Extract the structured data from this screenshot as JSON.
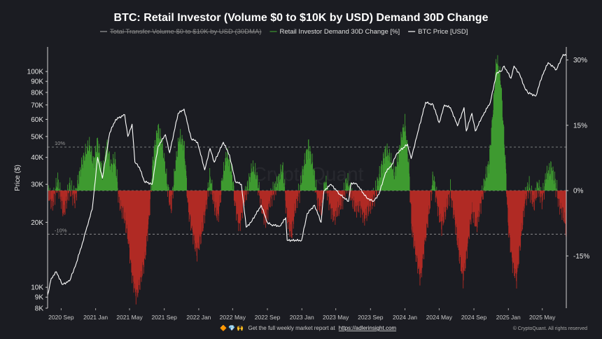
{
  "chart_data": {
    "type": "line",
    "title": "BTC: Retail Investor (Volume $0 to $10K by USD) Demand 30D Change",
    "legend": [
      {
        "label": "Total Transfer Volume $0 to $10K by USD (30DMA)",
        "color": "#9a9a9a",
        "disabled": true
      },
      {
        "label": "Retail Investor Demand 30D Change [%]",
        "color": "#3e9a30"
      },
      {
        "label": "BTC Price [USD]",
        "color": "#ffffff"
      }
    ],
    "legend_position": "top-center",
    "left_axis": {
      "label": "Price ($)",
      "scale": "log",
      "range": [
        8000,
        130000
      ],
      "ticks": [
        {
          "value": 8000,
          "label": "8K"
        },
        {
          "value": 9000,
          "label": "9K"
        },
        {
          "value": 10000,
          "label": "10K"
        },
        {
          "value": 20000,
          "label": "20K"
        },
        {
          "value": 30000,
          "label": "30K"
        },
        {
          "value": 40000,
          "label": "40K"
        },
        {
          "value": 50000,
          "label": "50K"
        },
        {
          "value": 60000,
          "label": "60K"
        },
        {
          "value": 70000,
          "label": "70K"
        },
        {
          "value": 80000,
          "label": "80K"
        },
        {
          "value": 90000,
          "label": "90K"
        },
        {
          "value": 100000,
          "label": "100K"
        }
      ]
    },
    "right_axis": {
      "scale": "linear",
      "range": [
        -27,
        33
      ],
      "ticks": [
        {
          "value": 30,
          "label": "30%"
        },
        {
          "value": 15,
          "label": "15%"
        },
        {
          "value": 0,
          "label": "0%"
        },
        {
          "value": -15,
          "label": "-15%"
        }
      ]
    },
    "x_axis": {
      "range": [
        "2020-07-15",
        "2025-07-25"
      ],
      "ticks": [
        {
          "date": "2020-09-01",
          "label": "2020 Sep"
        },
        {
          "date": "2021-01-01",
          "label": "2021 Jan"
        },
        {
          "date": "2021-05-01",
          "label": "2021 May"
        },
        {
          "date": "2021-09-01",
          "label": "2021 Sep"
        },
        {
          "date": "2022-01-01",
          "label": "2022 Jan"
        },
        {
          "date": "2022-05-01",
          "label": "2022 May"
        },
        {
          "date": "2022-09-01",
          "label": "2022 Sep"
        },
        {
          "date": "2023-01-01",
          "label": "2023 Jan"
        },
        {
          "date": "2023-05-01",
          "label": "2023 May"
        },
        {
          "date": "2023-09-01",
          "label": "2023 Sep"
        },
        {
          "date": "2024-01-01",
          "label": "2024 Jan"
        },
        {
          "date": "2024-05-01",
          "label": "2024 May"
        },
        {
          "date": "2024-09-01",
          "label": "2024 Sep"
        },
        {
          "date": "2025-01-01",
          "label": "2025 Jan"
        },
        {
          "date": "2025-05-01",
          "label": "2025 May"
        }
      ]
    },
    "reference_lines": [
      {
        "value": 10,
        "label": "10%"
      },
      {
        "value": 0,
        "label": ""
      },
      {
        "value": -10,
        "label": "-10%"
      }
    ],
    "series": [
      {
        "name": "BTC Price [USD]",
        "axis": "left",
        "color": "#ffffff",
        "points": [
          [
            "2020-07-15",
            9200
          ],
          [
            "2020-07-28",
            11000
          ],
          [
            "2020-08-15",
            11800
          ],
          [
            "2020-09-05",
            10300
          ],
          [
            "2020-10-01",
            10700
          ],
          [
            "2020-10-25",
            13000
          ],
          [
            "2020-11-15",
            16000
          ],
          [
            "2020-12-01",
            19000
          ],
          [
            "2020-12-20",
            23000
          ],
          [
            "2021-01-08",
            40000
          ],
          [
            "2021-01-25",
            32000
          ],
          [
            "2021-02-20",
            52000
          ],
          [
            "2021-03-13",
            60000
          ],
          [
            "2021-04-14",
            63000
          ],
          [
            "2021-04-25",
            50000
          ],
          [
            "2021-05-10",
            57000
          ],
          [
            "2021-05-20",
            38000
          ],
          [
            "2021-06-05",
            36000
          ],
          [
            "2021-06-22",
            31000
          ],
          [
            "2021-07-20",
            30000
          ],
          [
            "2021-08-10",
            45000
          ],
          [
            "2021-09-05",
            51000
          ],
          [
            "2021-09-20",
            42000
          ],
          [
            "2021-10-20",
            64000
          ],
          [
            "2021-11-10",
            67000
          ],
          [
            "2021-12-05",
            49000
          ],
          [
            "2021-12-28",
            47000
          ],
          [
            "2022-01-22",
            35000
          ],
          [
            "2022-02-10",
            44000
          ],
          [
            "2022-02-25",
            38000
          ],
          [
            "2022-03-29",
            47000
          ],
          [
            "2022-04-20",
            41000
          ],
          [
            "2022-05-10",
            31000
          ],
          [
            "2022-06-01",
            30000
          ],
          [
            "2022-06-18",
            19000
          ],
          [
            "2022-07-05",
            20000
          ],
          [
            "2022-08-10",
            24000
          ],
          [
            "2022-09-01",
            20000
          ],
          [
            "2022-09-15",
            19500
          ],
          [
            "2022-10-15",
            19200
          ],
          [
            "2022-11-05",
            21000
          ],
          [
            "2022-11-10",
            16500
          ],
          [
            "2022-12-31",
            16500
          ],
          [
            "2023-01-20",
            22000
          ],
          [
            "2023-02-15",
            24000
          ],
          [
            "2023-03-10",
            20000
          ],
          [
            "2023-03-20",
            28000
          ],
          [
            "2023-04-14",
            30000
          ],
          [
            "2023-05-15",
            27000
          ],
          [
            "2023-06-15",
            25000
          ],
          [
            "2023-06-25",
            30500
          ],
          [
            "2023-07-15",
            30000
          ],
          [
            "2023-08-18",
            26000
          ],
          [
            "2023-09-11",
            25000
          ],
          [
            "2023-10-01",
            27000
          ],
          [
            "2023-10-24",
            34000
          ],
          [
            "2023-11-15",
            37000
          ],
          [
            "2023-12-05",
            42000
          ],
          [
            "2024-01-10",
            46000
          ],
          [
            "2024-01-23",
            39500
          ],
          [
            "2024-02-15",
            52000
          ],
          [
            "2024-03-14",
            72000
          ],
          [
            "2024-04-10",
            70000
          ],
          [
            "2024-05-01",
            58000
          ],
          [
            "2024-05-20",
            70000
          ],
          [
            "2024-06-10",
            68000
          ],
          [
            "2024-07-05",
            56000
          ],
          [
            "2024-07-28",
            68000
          ],
          [
            "2024-08-05",
            53000
          ],
          [
            "2024-08-25",
            64000
          ],
          [
            "2024-09-06",
            53000
          ],
          [
            "2024-10-01",
            62000
          ],
          [
            "2024-10-29",
            72000
          ],
          [
            "2024-11-12",
            88000
          ],
          [
            "2024-11-22",
            99000
          ],
          [
            "2024-12-05",
            100000
          ],
          [
            "2024-12-17",
            106000
          ],
          [
            "2025-01-10",
            93000
          ],
          [
            "2025-01-21",
            106000
          ],
          [
            "2025-02-10",
            97000
          ],
          [
            "2025-02-28",
            84000
          ],
          [
            "2025-03-10",
            80000
          ],
          [
            "2025-04-08",
            77000
          ],
          [
            "2025-05-01",
            96000
          ],
          [
            "2025-05-22",
            110000
          ],
          [
            "2025-06-20",
            102000
          ],
          [
            "2025-07-14",
            120000
          ],
          [
            "2025-07-25",
            118000
          ]
        ]
      },
      {
        "name": "Retail Investor Demand 30D Change [%]",
        "axis": "right",
        "color_positive": "#3e9a30",
        "color_negative": "#b02a24",
        "points": [
          [
            "2020-07-15",
            0
          ],
          [
            "2020-08-01",
            -3
          ],
          [
            "2020-08-20",
            2
          ],
          [
            "2020-09-10",
            -5
          ],
          [
            "2020-10-01",
            1
          ],
          [
            "2020-10-20",
            -2
          ],
          [
            "2020-11-10",
            5
          ],
          [
            "2020-11-25",
            8
          ],
          [
            "2020-12-10",
            10
          ],
          [
            "2020-12-25",
            6
          ],
          [
            "2021-01-08",
            11
          ],
          [
            "2021-01-25",
            3
          ],
          [
            "2021-02-10",
            10
          ],
          [
            "2021-02-25",
            5
          ],
          [
            "2021-03-10",
            7
          ],
          [
            "2021-03-25",
            -2
          ],
          [
            "2021-04-10",
            -5
          ],
          [
            "2021-04-25",
            -10
          ],
          [
            "2021-05-10",
            -19
          ],
          [
            "2021-05-25",
            -24
          ],
          [
            "2021-06-10",
            -20
          ],
          [
            "2021-06-25",
            -15
          ],
          [
            "2021-07-10",
            -5
          ],
          [
            "2021-07-25",
            8
          ],
          [
            "2021-08-10",
            14
          ],
          [
            "2021-08-25",
            10
          ],
          [
            "2021-09-10",
            2
          ],
          [
            "2021-09-25",
            -4
          ],
          [
            "2021-10-10",
            5
          ],
          [
            "2021-10-25",
            12
          ],
          [
            "2021-11-10",
            10
          ],
          [
            "2021-11-25",
            -4
          ],
          [
            "2021-12-10",
            -9
          ],
          [
            "2021-12-25",
            -14
          ],
          [
            "2022-01-10",
            -10
          ],
          [
            "2022-01-25",
            -4
          ],
          [
            "2022-02-10",
            3
          ],
          [
            "2022-02-25",
            -3
          ],
          [
            "2022-03-10",
            -6
          ],
          [
            "2022-03-25",
            2
          ],
          [
            "2022-04-10",
            8
          ],
          [
            "2022-04-25",
            5
          ],
          [
            "2022-05-10",
            -3
          ],
          [
            "2022-05-25",
            -8
          ],
          [
            "2022-06-10",
            -2
          ],
          [
            "2022-06-25",
            1
          ],
          [
            "2022-07-10",
            5
          ],
          [
            "2022-07-25",
            3
          ],
          [
            "2022-08-10",
            -3
          ],
          [
            "2022-08-25",
            -7
          ],
          [
            "2022-09-10",
            -2
          ],
          [
            "2022-09-25",
            0
          ],
          [
            "2022-10-10",
            2
          ],
          [
            "2022-10-25",
            5
          ],
          [
            "2022-11-10",
            -6
          ],
          [
            "2022-11-25",
            -10
          ],
          [
            "2022-12-10",
            -3
          ],
          [
            "2022-12-25",
            0
          ],
          [
            "2023-01-10",
            6
          ],
          [
            "2023-01-25",
            10
          ],
          [
            "2023-02-10",
            5
          ],
          [
            "2023-02-25",
            -2
          ],
          [
            "2023-03-10",
            -4
          ],
          [
            "2023-03-25",
            2
          ],
          [
            "2023-04-10",
            -3
          ],
          [
            "2023-04-25",
            -6
          ],
          [
            "2023-05-10",
            -4
          ],
          [
            "2023-05-25",
            -2
          ],
          [
            "2023-06-10",
            2
          ],
          [
            "2023-06-25",
            -1
          ],
          [
            "2023-07-10",
            -4
          ],
          [
            "2023-07-25",
            -3
          ],
          [
            "2023-08-10",
            -6
          ],
          [
            "2023-08-25",
            -4
          ],
          [
            "2023-09-10",
            -2
          ],
          [
            "2023-09-25",
            1
          ],
          [
            "2023-10-10",
            5
          ],
          [
            "2023-10-25",
            9
          ],
          [
            "2023-11-10",
            7
          ],
          [
            "2023-11-25",
            3
          ],
          [
            "2023-12-10",
            8
          ],
          [
            "2023-12-20",
            12
          ],
          [
            "2024-01-01",
            15
          ],
          [
            "2024-01-15",
            5
          ],
          [
            "2024-01-25",
            -8
          ],
          [
            "2024-02-10",
            -15
          ],
          [
            "2024-02-25",
            -20
          ],
          [
            "2024-03-10",
            -12
          ],
          [
            "2024-03-25",
            -5
          ],
          [
            "2024-04-10",
            3
          ],
          [
            "2024-04-25",
            -3
          ],
          [
            "2024-05-10",
            -8
          ],
          [
            "2024-05-25",
            -4
          ],
          [
            "2024-06-10",
            0
          ],
          [
            "2024-06-25",
            -6
          ],
          [
            "2024-07-10",
            -14
          ],
          [
            "2024-07-25",
            -20
          ],
          [
            "2024-08-10",
            -12
          ],
          [
            "2024-08-25",
            -4
          ],
          [
            "2024-09-10",
            -8
          ],
          [
            "2024-09-25",
            -3
          ],
          [
            "2024-10-10",
            2
          ],
          [
            "2024-10-25",
            6
          ],
          [
            "2024-11-10",
            20
          ],
          [
            "2024-11-20",
            30
          ],
          [
            "2024-12-05",
            25
          ],
          [
            "2024-12-20",
            8
          ],
          [
            "2025-01-01",
            -8
          ],
          [
            "2025-01-15",
            -16
          ],
          [
            "2025-01-30",
            -20
          ],
          [
            "2025-02-15",
            -10
          ],
          [
            "2025-03-01",
            -2
          ],
          [
            "2025-03-15",
            1
          ],
          [
            "2025-04-01",
            -3
          ],
          [
            "2025-04-15",
            1
          ],
          [
            "2025-05-01",
            -2
          ],
          [
            "2025-05-15",
            3
          ],
          [
            "2025-06-01",
            5
          ],
          [
            "2025-06-15",
            2
          ],
          [
            "2025-07-01",
            -3
          ],
          [
            "2025-07-15",
            -5
          ],
          [
            "2025-07-25",
            -9
          ]
        ]
      }
    ],
    "watermark": "CryptoQuant",
    "footer": {
      "icons": "🔶 💎 🙌",
      "text": "Get the full weekly market report at",
      "link": "https://adlerinsight.com"
    },
    "copyright": "© CryptoQuant. All rights reserved"
  }
}
